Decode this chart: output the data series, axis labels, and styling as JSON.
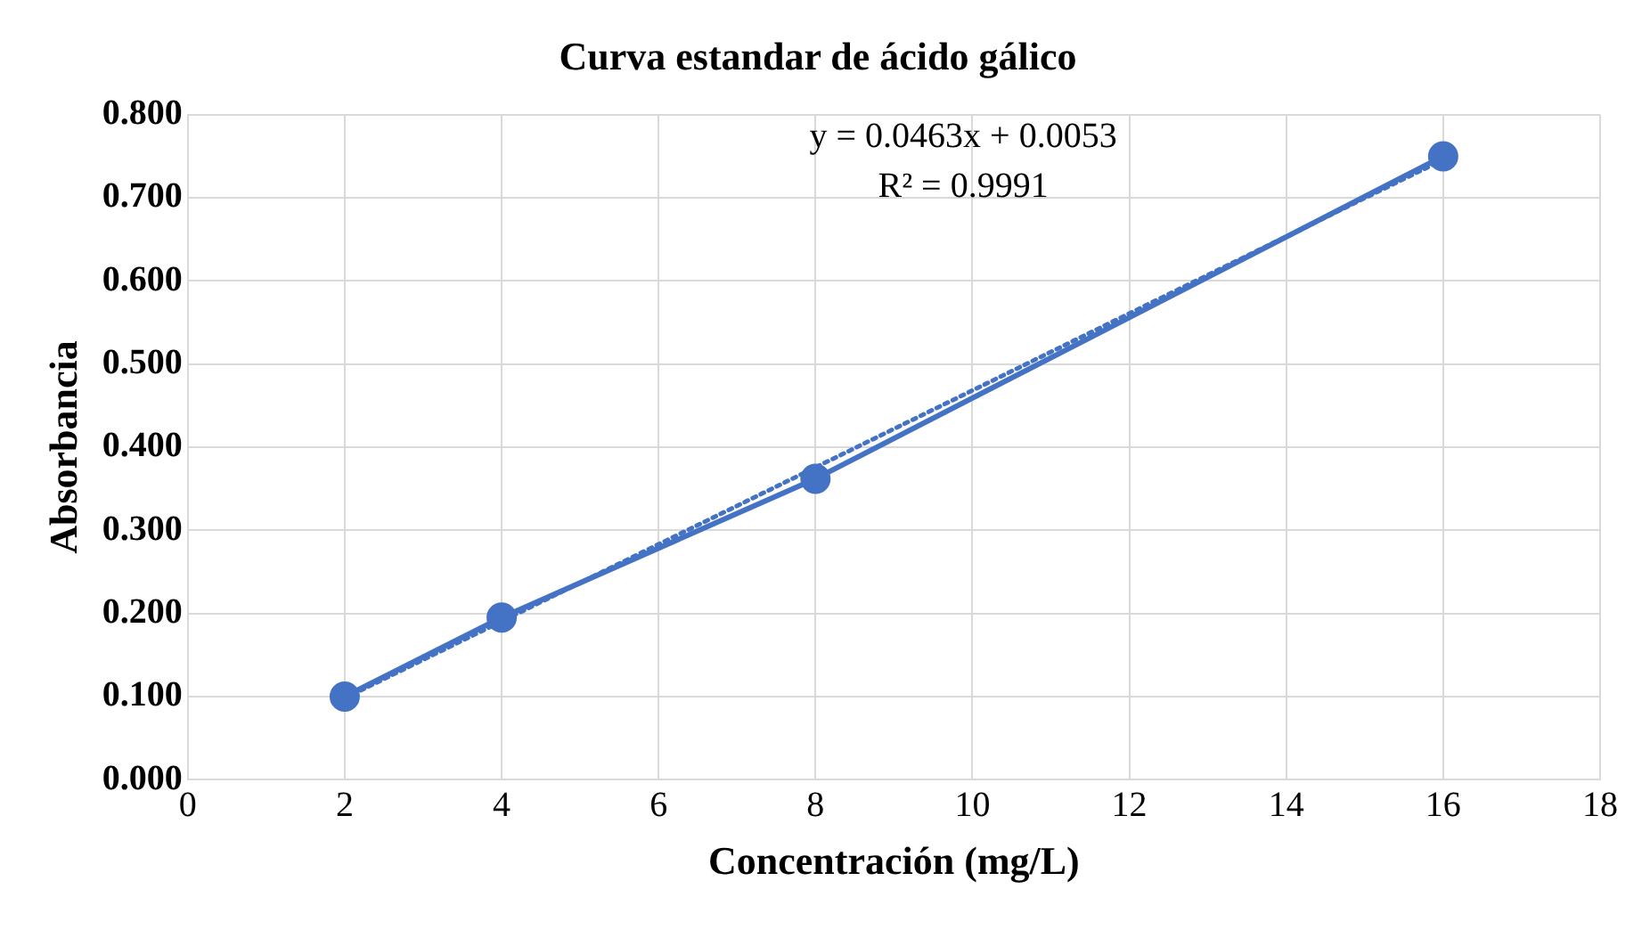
{
  "chart_data": {
    "type": "line",
    "title": "Curva estandar de ácido gálico",
    "xlabel": "Concentración (mg/L)",
    "ylabel": "Absorbancia",
    "x": [
      2,
      4,
      8,
      16
    ],
    "series": [
      {
        "color": "#4472c4",
        "values": [
          0.1,
          0.195,
          0.362,
          0.75
        ],
        "marker": "circle",
        "line_style": "solid"
      },
      {
        "type": "line",
        "color": "#4472c4",
        "x": [
          2,
          16
        ],
        "values": [
          0.098,
          0.746
        ],
        "marker": "none",
        "line_style": "dotted"
      }
    ],
    "xlim": [
      0,
      18
    ],
    "xticks": [
      0,
      2,
      4,
      6,
      8,
      10,
      12,
      14,
      16,
      18
    ],
    "ylim": [
      0,
      0.8
    ],
    "yticks": [
      {
        "value": 0,
        "label": "0.000"
      },
      {
        "value": 0.1,
        "label": "0.100"
      },
      {
        "value": 0.2,
        "label": "0.200"
      },
      {
        "value": 0.3,
        "label": "0.300"
      },
      {
        "value": 0.4,
        "label": "0.400"
      },
      {
        "value": 0.5,
        "label": "0.500"
      },
      {
        "value": 0.6,
        "label": "0.600"
      },
      {
        "value": 0.7,
        "label": "0.700"
      },
      {
        "value": 0.8,
        "label": "0.800"
      }
    ],
    "grid": true,
    "legend": false,
    "annotations": [
      "y = 0.0463x + 0.0053",
      "R² = 0.9991"
    ]
  }
}
